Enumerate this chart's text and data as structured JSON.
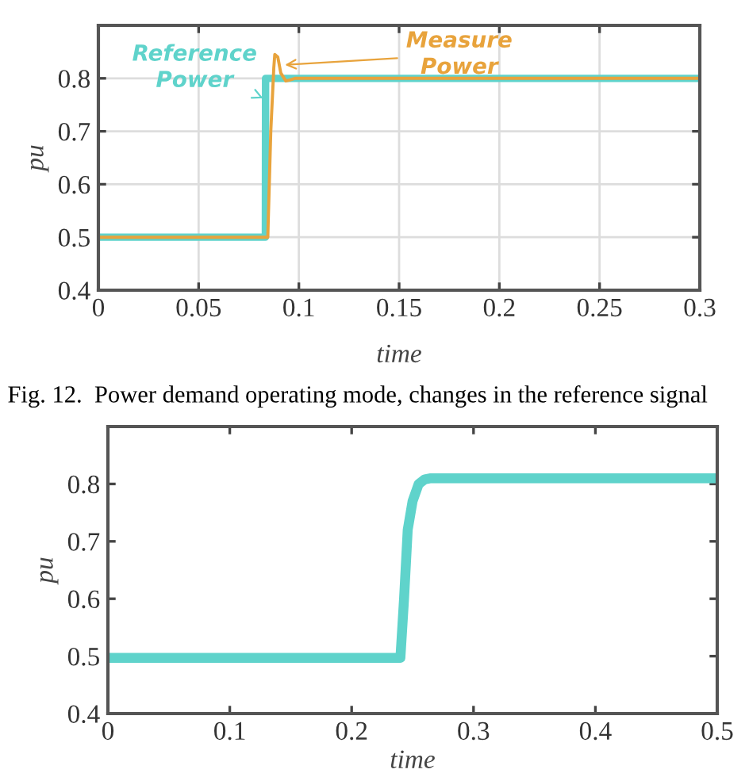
{
  "chart_data": [
    {
      "type": "line",
      "xlabel": "time",
      "ylabel": "pu",
      "xlim": [
        0,
        0.3
      ],
      "ylim": [
        0.4,
        0.9
      ],
      "xticks": [
        0,
        0.05,
        0.1,
        0.15,
        0.2,
        0.25,
        0.3
      ],
      "yticks": [
        0.4,
        0.5,
        0.6,
        0.7,
        0.8
      ],
      "grid": true,
      "series": [
        {
          "name": "Reference Power",
          "color": "#5fd3cb",
          "x": [
            0,
            0.0833,
            0.0834,
            0.3
          ],
          "values": [
            0.5,
            0.5,
            0.8,
            0.8
          ]
        },
        {
          "name": "Measure Power",
          "color": "#e8a33c",
          "x": [
            0,
            0.0845,
            0.086,
            0.0875,
            0.088,
            0.0895,
            0.091,
            0.0935,
            0.0955,
            0.098,
            0.1,
            0.3
          ],
          "values": [
            0.5,
            0.5,
            0.7,
            0.82,
            0.845,
            0.84,
            0.81,
            0.795,
            0.797,
            0.8,
            0.8,
            0.8
          ]
        }
      ],
      "annotations": [
        "Fig. 12.  Power demand operating mode, changes in the reference signal"
      ]
    },
    {
      "type": "line",
      "xlabel": "time",
      "ylabel": "pu",
      "xlim": [
        0,
        0.5
      ],
      "ylim": [
        0.4,
        0.9
      ],
      "xticks": [
        0,
        0.1,
        0.2,
        0.3,
        0.4,
        0.5
      ],
      "yticks": [
        0.4,
        0.5,
        0.6,
        0.7,
        0.8
      ],
      "series": [
        {
          "color": "#5fd3cb",
          "x": [
            0,
            0.24,
            0.243,
            0.246,
            0.25,
            0.255,
            0.26,
            0.265,
            0.5
          ],
          "values": [
            0.497,
            0.497,
            0.6,
            0.72,
            0.77,
            0.8,
            0.808,
            0.81,
            0.81
          ]
        }
      ]
    }
  ]
}
